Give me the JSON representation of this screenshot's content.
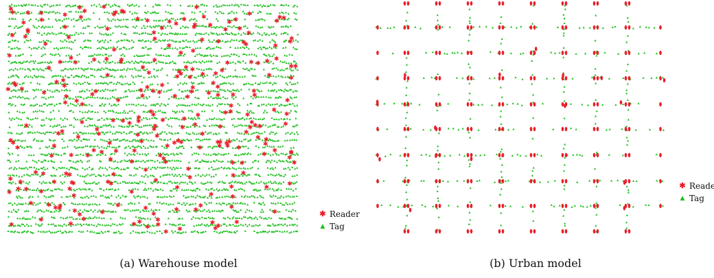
{
  "figures": [
    {
      "caption": "(a) Warehouse model",
      "legend": [
        {
          "label": "Reader",
          "marker": "*",
          "color": "#e8202a"
        },
        {
          "label": "Tag",
          "marker": "▲",
          "color": "#1fbf1f"
        }
      ]
    },
    {
      "caption": "(b) Urban model",
      "legend": [
        {
          "label": "Reader",
          "marker": "*",
          "color": "#e8202a"
        },
        {
          "label": "Tag",
          "marker": "▲",
          "color": "#1fbf1f"
        }
      ]
    }
  ],
  "chart_data": [
    {
      "type": "scatter",
      "title": "",
      "xlabel": "",
      "ylabel": "",
      "grid": false,
      "axes_visible": false,
      "legend_position": "bottom-right",
      "layout": "warehouse",
      "series": [
        {
          "name": "Reader",
          "marker": "star",
          "color": "#e8202a",
          "count": 260,
          "distribution": "random"
        },
        {
          "name": "Tag",
          "marker": "triangle",
          "color": "#1fbf1f",
          "rows": 33,
          "distribution": "dense horizontal rows"
        }
      ],
      "seed": 7
    },
    {
      "type": "scatter",
      "title": "",
      "xlabel": "",
      "ylabel": "",
      "grid": false,
      "axes_visible": false,
      "legend_position": "bottom-right",
      "layout": "urban",
      "series": [
        {
          "name": "Reader",
          "marker": "star",
          "color": "#e8202a",
          "distribution": "clustered at street intersections"
        },
        {
          "name": "Tag",
          "marker": "triangle",
          "color": "#1fbf1f",
          "distribution": "along streets"
        }
      ],
      "grid_columns": 10,
      "grid_rows": 10,
      "seed": 11
    }
  ]
}
